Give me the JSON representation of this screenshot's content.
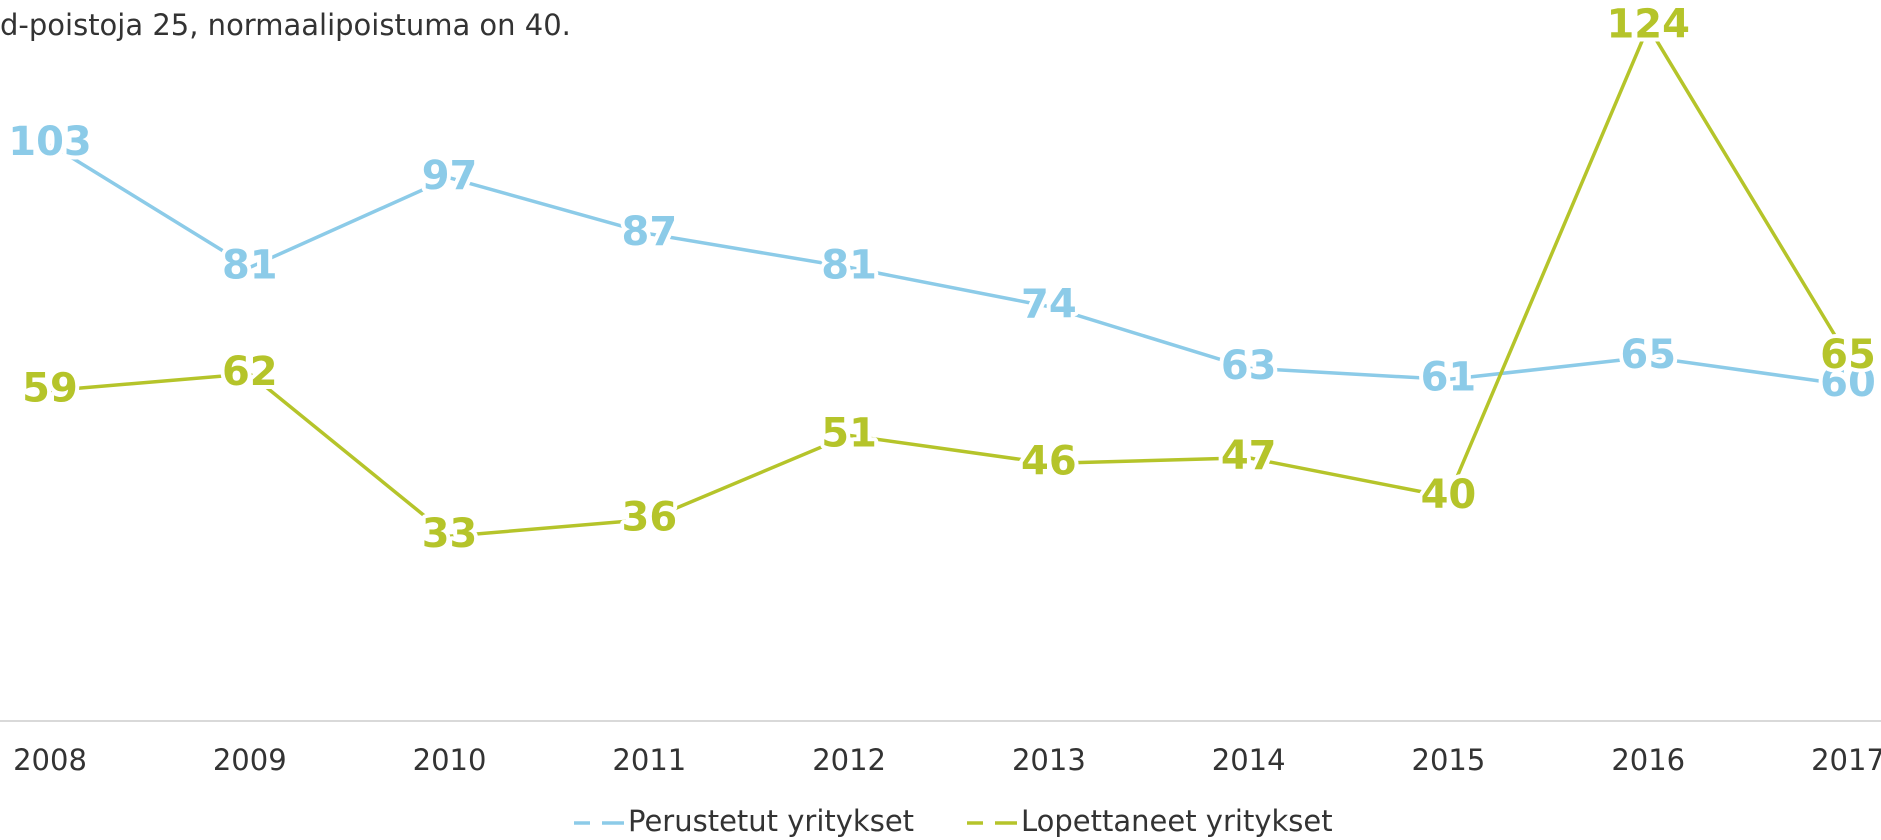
{
  "chart_data": {
    "type": "line",
    "title": "d-poistoja 25,  normaalipoistuma on 40.",
    "categories": [
      "2008",
      "2009",
      "2010",
      "2011",
      "2012",
      "2013",
      "2014",
      "2015",
      "2016",
      "2017"
    ],
    "series": [
      {
        "name": "Perustetut yritykset",
        "color": "#8ccbe8",
        "values": [
          103,
          81,
          97,
          87,
          81,
          74,
          63,
          61,
          65,
          60
        ]
      },
      {
        "name": "Lopettaneet yritykset",
        "color": "#b5c42a",
        "values": [
          59,
          62,
          33,
          36,
          51,
          46,
          47,
          40,
          124,
          65
        ]
      }
    ],
    "ylim": [
      0,
      130
    ],
    "grid": false,
    "legend": "bottom"
  }
}
